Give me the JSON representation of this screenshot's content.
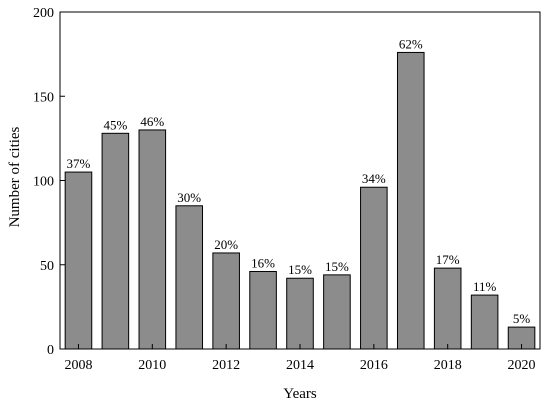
{
  "chart_data": {
    "type": "bar",
    "title": "",
    "xlabel": "Years",
    "ylabel": "Number of cities",
    "categories": [
      "2008",
      "2009",
      "2010",
      "2011",
      "2012",
      "2013",
      "2014",
      "2015",
      "2016",
      "2017",
      "2018",
      "2019",
      "2020"
    ],
    "values": [
      105,
      128,
      130,
      85,
      57,
      46,
      42,
      44,
      96,
      176,
      48,
      32,
      13
    ],
    "data_labels": [
      "37%",
      "45%",
      "46%",
      "30%",
      "20%",
      "16%",
      "15%",
      "15%",
      "34%",
      "62%",
      "17%",
      "11%",
      "5%"
    ],
    "x_tick_labels": [
      "2008",
      "2010",
      "2012",
      "2014",
      "2016",
      "2018",
      "2020"
    ],
    "y_ticks": [
      0,
      50,
      100,
      150,
      200
    ],
    "ylim": [
      0,
      200
    ],
    "grid": false,
    "legend": "none",
    "colors": {
      "bar_fill": "#8c8c8c",
      "bar_stroke": "#000000",
      "axis": "#000000"
    }
  }
}
